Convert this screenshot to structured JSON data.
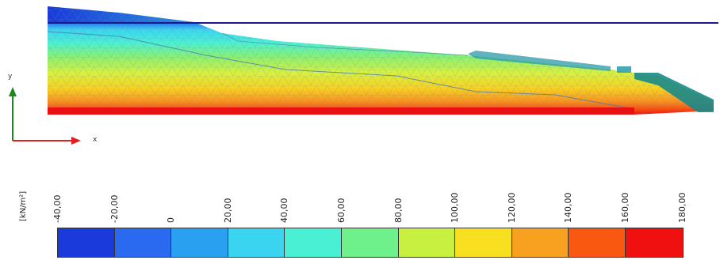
{
  "axes": {
    "x_label": "x",
    "y_label": "y"
  },
  "legend": {
    "unit": "[kN/m²]",
    "ticks": [
      "-40,00",
      "-20,00",
      "0",
      "20,00",
      "40,00",
      "60,00",
      "80,00",
      "100,00",
      "120,00",
      "140,00",
      "160,00",
      "180,00"
    ],
    "colors": [
      "#1a3adb",
      "#2a6af0",
      "#2aa0f0",
      "#3ad4f0",
      "#4af0d4",
      "#6ef08a",
      "#c8f040",
      "#f8e020",
      "#f8a020",
      "#f85810",
      "#f01010"
    ]
  },
  "colors": {
    "water_line": "#1a1a8a",
    "axis_y": "#1a8a1a",
    "axis_x": "#e02020"
  }
}
